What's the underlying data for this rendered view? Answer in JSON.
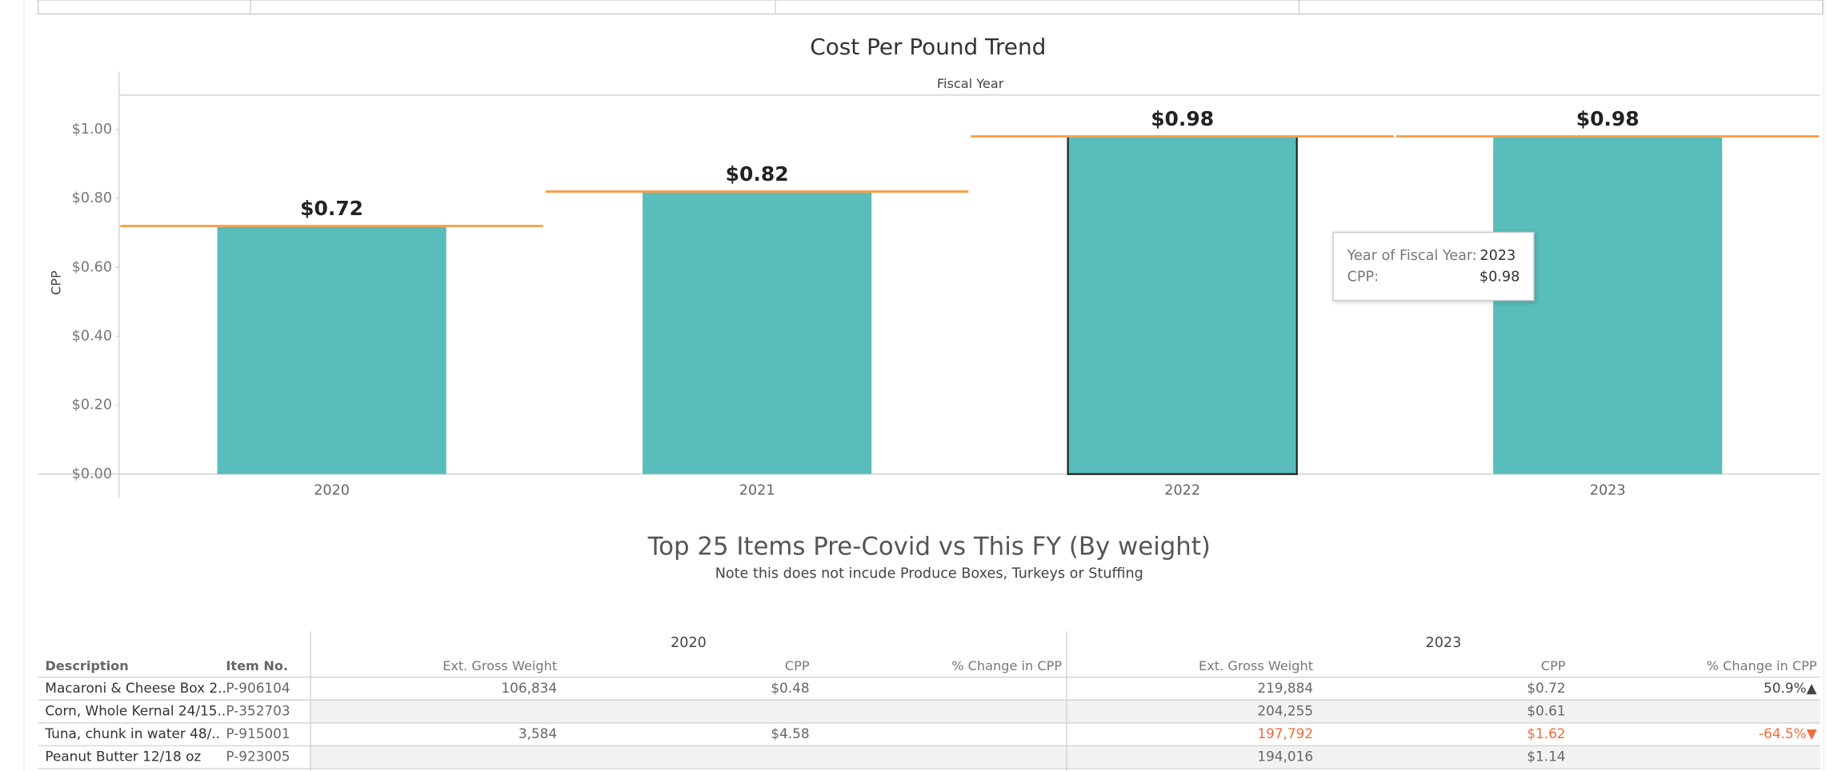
{
  "chart_data": {
    "type": "bar",
    "title": "Cost Per Pound Trend",
    "header": "Fiscal Year",
    "y_label": "CPP",
    "categories": [
      "2020",
      "2021",
      "2022",
      "2023"
    ],
    "values": [
      0.72,
      0.82,
      0.98,
      0.98
    ],
    "value_labels": [
      "$0.72",
      "$0.82",
      "$0.98",
      "$0.98"
    ],
    "color": "#58bdbb",
    "reference_line_color": "#f5a04a",
    "selected_category": "2022",
    "ylim": [
      0,
      1.1
    ],
    "yticks": [
      {
        "value": 0,
        "label": "$0.00"
      },
      {
        "value": 0.2,
        "label": "$0.20"
      },
      {
        "value": 0.4,
        "label": "$0.40"
      },
      {
        "value": 0.6,
        "label": "$0.60"
      },
      {
        "value": 0.8,
        "label": "$0.80"
      },
      {
        "value": 1.0,
        "label": "$1.00"
      }
    ],
    "tooltip": {
      "rows": [
        [
          "Year of Fiscal Year:",
          "2023"
        ],
        [
          "CPP:",
          "$0.98"
        ]
      ]
    }
  },
  "table": {
    "title": "Top 25 Items Pre-Covid vs This FY (By weight)",
    "note": "Note this does not incude Produce Boxes, Turkeys or Stuffing",
    "years": [
      "2020",
      "2023"
    ],
    "columns": [
      "Description",
      "Item No."
    ],
    "year_columns": [
      "Ext. Gross Weight",
      "CPP",
      "% Change in CPP"
    ],
    "alert_color": "#f26b38",
    "alert_row": 2,
    "rows": [
      [
        "Macaroni & Cheese Box 2..",
        "P-906104",
        "106,834",
        "$0.48",
        null,
        "219,884",
        "$0.72",
        "50.9%▲"
      ],
      [
        "Corn, Whole Kernal 24/15...",
        "P-352703",
        null,
        null,
        null,
        "204,255",
        "$0.61",
        null
      ],
      [
        "Tuna, chunk in water  48/..",
        "P-915001",
        "3,584",
        "$4.58",
        null,
        "197,792",
        "$1.62",
        "-64.5%▼"
      ],
      [
        "Peanut Butter 12/18 oz",
        "P-923005",
        null,
        null,
        null,
        "194,016",
        "$1.14",
        null
      ]
    ]
  }
}
